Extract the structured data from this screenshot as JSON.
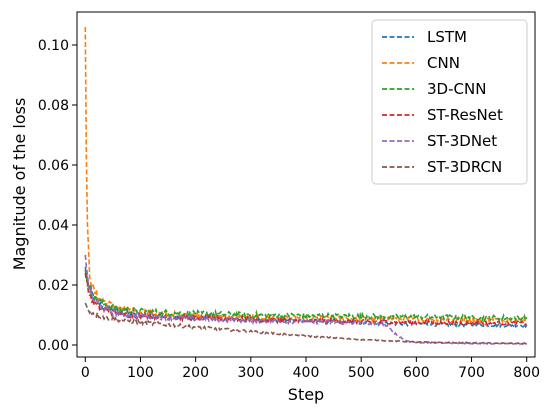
{
  "chart_data": {
    "type": "line",
    "xlabel": "Step",
    "ylabel": "Magnitude of the loss",
    "xlim": [
      -15,
      815
    ],
    "ylim": [
      -0.004,
      0.111
    ],
    "xticks": [
      0,
      100,
      200,
      300,
      400,
      500,
      600,
      700,
      800
    ],
    "yticks": [
      0.0,
      0.02,
      0.04,
      0.06,
      0.08,
      0.1
    ],
    "ytick_labels": [
      "0.00",
      "0.02",
      "0.04",
      "0.06",
      "0.08",
      "0.10"
    ],
    "grid": false,
    "legend_position": "top-right",
    "line_style": "dashed",
    "series": [
      {
        "name": "LSTM",
        "color": "#1f77b4",
        "x": [
          0,
          5,
          15,
          30,
          50,
          80,
          120,
          200,
          300,
          400,
          500,
          560,
          600,
          700,
          800
        ],
        "y": [
          0.026,
          0.02,
          0.016,
          0.013,
          0.0115,
          0.0105,
          0.0098,
          0.009,
          0.0085,
          0.008,
          0.0075,
          0.0072,
          0.007,
          0.0068,
          0.0066
        ]
      },
      {
        "name": "CNN",
        "color": "#ff7f0e",
        "x": [
          0,
          3,
          8,
          15,
          30,
          50,
          80,
          120,
          200,
          300,
          400,
          500,
          600,
          700,
          800
        ],
        "y": [
          0.106,
          0.04,
          0.024,
          0.018,
          0.015,
          0.013,
          0.0115,
          0.0105,
          0.0098,
          0.0093,
          0.009,
          0.0088,
          0.0086,
          0.0085,
          0.0084
        ]
      },
      {
        "name": "3D-CNN",
        "color": "#2ca02c",
        "x": [
          0,
          5,
          15,
          30,
          50,
          80,
          120,
          200,
          300,
          400,
          500,
          600,
          700,
          800
        ],
        "y": [
          0.025,
          0.02,
          0.016,
          0.014,
          0.0125,
          0.0115,
          0.011,
          0.0105,
          0.01,
          0.0098,
          0.0096,
          0.0094,
          0.0092,
          0.009
        ]
      },
      {
        "name": "ST-ResNet",
        "color": "#d62728",
        "x": [
          0,
          5,
          15,
          30,
          50,
          80,
          120,
          200,
          300,
          400,
          500,
          600,
          700,
          800
        ],
        "y": [
          0.024,
          0.018,
          0.014,
          0.012,
          0.0108,
          0.01,
          0.0095,
          0.009,
          0.0085,
          0.008,
          0.0078,
          0.0076,
          0.0074,
          0.0072
        ]
      },
      {
        "name": "ST-3DNet",
        "color": "#9467bd",
        "x": [
          0,
          5,
          15,
          30,
          50,
          80,
          120,
          200,
          300,
          400,
          500,
          540,
          560,
          580,
          600,
          700,
          800
        ],
        "y": [
          0.03,
          0.02,
          0.015,
          0.0125,
          0.011,
          0.01,
          0.0094,
          0.0088,
          0.0082,
          0.0078,
          0.0074,
          0.0072,
          0.004,
          0.0015,
          0.0008,
          0.0005,
          0.0004
        ]
      },
      {
        "name": "ST-3DRCN",
        "color": "#8c564b",
        "x": [
          0,
          5,
          15,
          30,
          50,
          80,
          120,
          200,
          300,
          400,
          500,
          600,
          700,
          800
        ],
        "y": [
          0.014,
          0.012,
          0.0105,
          0.0095,
          0.0087,
          0.008,
          0.0072,
          0.006,
          0.0045,
          0.003,
          0.0018,
          0.001,
          0.0007,
          0.0005
        ]
      }
    ]
  }
}
